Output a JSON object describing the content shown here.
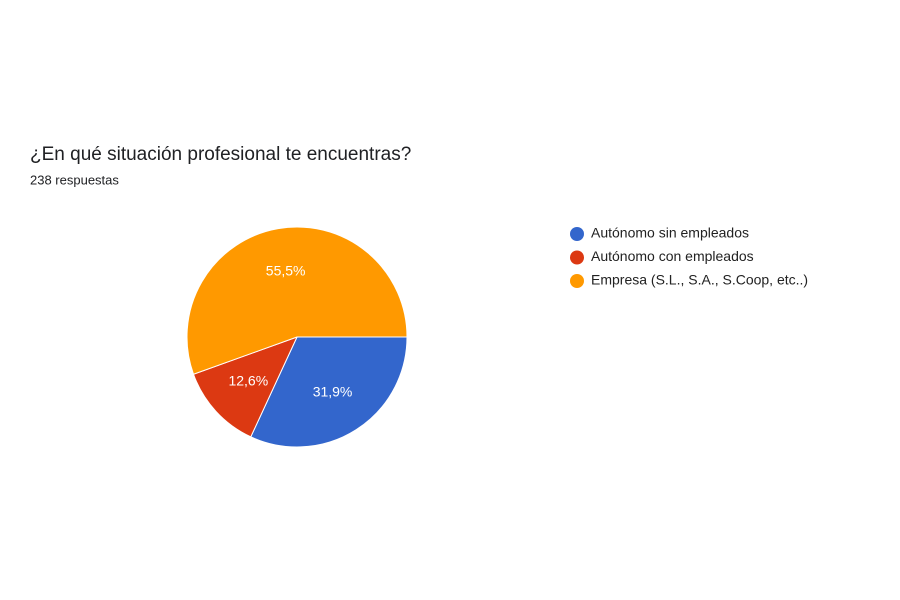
{
  "chart_data": {
    "type": "pie",
    "title": "¿En qué situación profesional te encuentras?",
    "subtitle": "238 respuestas",
    "categories": [
      "Autónomo sin empleados",
      "Autónomo con empleados",
      "Empresa (S.L., S.A., S.Coop, etc..)"
    ],
    "values": [
      31.9,
      12.6,
      55.5
    ],
    "value_labels": [
      "31,9%",
      "12,6%",
      "55,5%"
    ],
    "colors": [
      "#3366cc",
      "#dc3912",
      "#ff9900"
    ],
    "legend": "right"
  }
}
